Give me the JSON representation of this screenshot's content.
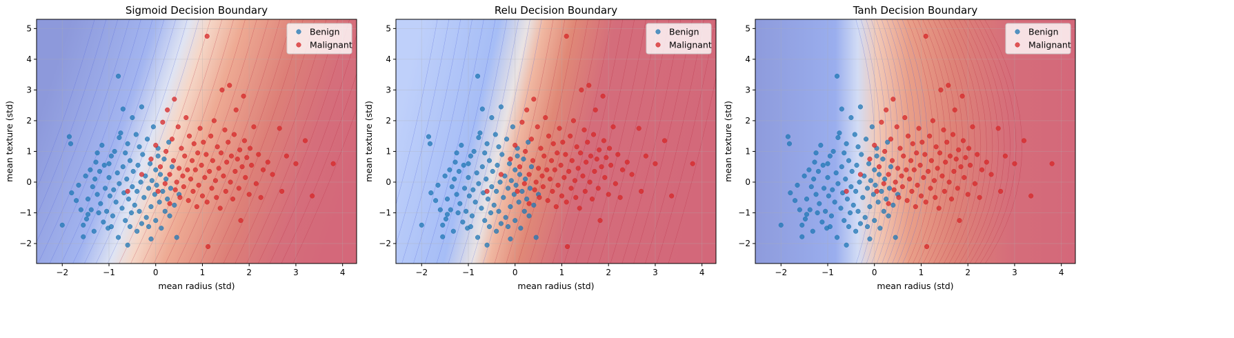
{
  "chart_data": [
    {
      "type": "scatter",
      "title": "Sigmoid Decision Boundary",
      "xlabel": "mean radius (std)",
      "ylabel": "mean texture (std)",
      "xlim": [
        -2.55,
        4.3
      ],
      "ylim": [
        -2.65,
        5.3
      ],
      "xticks": [
        -2,
        -1,
        0,
        1,
        2,
        3,
        4
      ],
      "yticks": [
        -2,
        -1,
        0,
        1,
        2,
        3,
        4,
        5
      ],
      "xtick_labels": [
        "−2",
        "−1",
        "0",
        "1",
        "2",
        "3",
        "4"
      ],
      "ytick_labels": [
        "−2",
        "−1",
        "0",
        "1",
        "2",
        "3",
        "4",
        "5"
      ],
      "grid": true,
      "legend_position": "top-right",
      "background": "decision-boundary-contour",
      "activation": "sigmoid",
      "series": [
        {
          "name": "Benign",
          "color": "#1f77b4"
        },
        {
          "name": "Malignant",
          "color": "#d62728"
        }
      ]
    },
    {
      "type": "scatter",
      "title": "Relu Decision Boundary",
      "xlabel": "mean radius (std)",
      "ylabel": "mean texture (std)",
      "xlim": [
        -2.55,
        4.3
      ],
      "ylim": [
        -2.65,
        5.3
      ],
      "xticks": [
        -2,
        -1,
        0,
        1,
        2,
        3,
        4
      ],
      "yticks": [
        -2,
        -1,
        0,
        1,
        2,
        3,
        4,
        5
      ],
      "xtick_labels": [
        "−2",
        "−1",
        "0",
        "1",
        "2",
        "3",
        "4"
      ],
      "ytick_labels": [
        "−2",
        "−1",
        "0",
        "1",
        "2",
        "3",
        "4",
        "5"
      ],
      "grid": true,
      "legend_position": "top-right",
      "background": "decision-boundary-contour",
      "activation": "relu",
      "series": [
        {
          "name": "Benign",
          "color": "#1f77b4"
        },
        {
          "name": "Malignant",
          "color": "#d62728"
        }
      ]
    },
    {
      "type": "scatter",
      "title": "Tanh Decision Boundary",
      "xlabel": "mean radius (std)",
      "ylabel": "mean texture (std)",
      "xlim": [
        -2.55,
        4.3
      ],
      "ylim": [
        -2.65,
        5.3
      ],
      "xticks": [
        -2,
        -1,
        0,
        1,
        2,
        3,
        4
      ],
      "yticks": [
        -2,
        -1,
        0,
        1,
        2,
        3,
        4,
        5
      ],
      "xtick_labels": [
        "−2",
        "−1",
        "0",
        "1",
        "2",
        "3",
        "4"
      ],
      "ytick_labels": [
        "−2",
        "−1",
        "0",
        "1",
        "2",
        "3",
        "4",
        "5"
      ],
      "grid": true,
      "legend_position": "top-right",
      "background": "decision-boundary-contour",
      "activation": "tanh",
      "series": [
        {
          "name": "Benign",
          "color": "#1f77b4"
        },
        {
          "name": "Malignant",
          "color": "#d62728"
        }
      ]
    }
  ],
  "points": {
    "benign": [
      [
        -2.0,
        -1.4
      ],
      [
        -1.85,
        1.48
      ],
      [
        -1.82,
        1.25
      ],
      [
        -1.8,
        -0.35
      ],
      [
        -1.7,
        -0.6
      ],
      [
        -1.65,
        -0.1
      ],
      [
        -1.6,
        -0.9
      ],
      [
        -1.55,
        -1.4
      ],
      [
        -1.55,
        -1.78
      ],
      [
        -1.5,
        0.2
      ],
      [
        -1.48,
        -1.2
      ],
      [
        -1.45,
        -0.55
      ],
      [
        -1.4,
        0.4
      ],
      [
        -1.38,
        -0.9
      ],
      [
        -1.35,
        -0.15
      ],
      [
        -1.32,
        -1.6
      ],
      [
        -1.3,
        0.1
      ],
      [
        -1.28,
        0.65
      ],
      [
        -1.25,
        -0.4
      ],
      [
        -1.22,
        -1.0
      ],
      [
        -1.2,
        0.35
      ],
      [
        -1.18,
        -0.7
      ],
      [
        -1.15,
        1.2
      ],
      [
        -1.12,
        -1.3
      ],
      [
        -1.1,
        0.55
      ],
      [
        -1.08,
        -0.2
      ],
      [
        -1.05,
        -0.95
      ],
      [
        -1.02,
        -1.5
      ],
      [
        -1.0,
        0.15
      ],
      [
        -0.98,
        -0.45
      ],
      [
        -0.95,
        0.85
      ],
      [
        -0.92,
        -1.1
      ],
      [
        -0.9,
        -0.25
      ],
      [
        -0.88,
        1.0
      ],
      [
        -0.85,
        -0.65
      ],
      [
        -0.82,
        0.3
      ],
      [
        -0.8,
        3.45
      ],
      [
        -0.8,
        -1.8
      ],
      [
        -0.78,
        -0.05
      ],
      [
        -0.75,
        1.6
      ],
      [
        -0.72,
        -0.85
      ],
      [
        -0.7,
        0.5
      ],
      [
        -0.7,
        2.38
      ],
      [
        -0.68,
        -0.35
      ],
      [
        -0.65,
        -1.25
      ],
      [
        -0.62,
        0.1
      ],
      [
        -0.6,
        1.25
      ],
      [
        -0.6,
        -2.05
      ],
      [
        -0.58,
        -0.55
      ],
      [
        -0.55,
        0.7
      ],
      [
        -0.52,
        -1.0
      ],
      [
        -0.5,
        -0.15
      ],
      [
        -0.5,
        2.1
      ],
      [
        -0.48,
        0.35
      ],
      [
        -0.45,
        -0.75
      ],
      [
        -0.42,
        1.55
      ],
      [
        -0.4,
        -0.3
      ],
      [
        -0.4,
        -1.6
      ],
      [
        -0.38,
        0.55
      ],
      [
        -0.35,
        -0.95
      ],
      [
        -0.32,
        0.0
      ],
      [
        -0.3,
        2.45
      ],
      [
        -0.3,
        -1.35
      ],
      [
        -0.28,
        0.9
      ],
      [
        -0.25,
        -0.5
      ],
      [
        -0.22,
        0.2
      ],
      [
        -0.2,
        -1.15
      ],
      [
        -0.18,
        1.4
      ],
      [
        -0.15,
        -0.2
      ],
      [
        -0.12,
        0.6
      ],
      [
        -0.1,
        -0.8
      ],
      [
        -0.1,
        -1.85
      ],
      [
        -0.08,
        0.05
      ],
      [
        -0.05,
        1.8
      ],
      [
        -0.02,
        -0.4
      ],
      [
        0.0,
        0.4
      ],
      [
        0.0,
        -1.25
      ],
      [
        0.02,
        -0.1
      ],
      [
        0.05,
        1.1
      ],
      [
        0.08,
        -0.65
      ],
      [
        0.1,
        0.25
      ],
      [
        0.12,
        -1.5
      ],
      [
        0.15,
        -0.3
      ],
      [
        0.18,
        0.75
      ],
      [
        0.2,
        -0.95
      ],
      [
        0.22,
        0.1
      ],
      [
        0.25,
        -0.55
      ],
      [
        0.28,
        1.3
      ],
      [
        0.3,
        -1.1
      ],
      [
        0.32,
        -0.2
      ],
      [
        0.35,
        0.5
      ],
      [
        0.4,
        -0.75
      ],
      [
        0.45,
        -1.8
      ],
      [
        0.5,
        -0.4
      ],
      [
        -1.25,
        0.95
      ],
      [
        -1.45,
        -1.05
      ],
      [
        -0.95,
        -1.45
      ],
      [
        -0.65,
        0.95
      ],
      [
        -0.35,
        1.15
      ],
      [
        -0.15,
        -1.45
      ],
      [
        0.05,
        0.85
      ],
      [
        -0.55,
        -1.45
      ],
      [
        -1.0,
        0.6
      ],
      [
        -0.78,
        1.45
      ]
    ],
    "malignant": [
      [
        -0.6,
        -0.3
      ],
      [
        -0.3,
        0.25
      ],
      [
        -0.1,
        0.75
      ],
      [
        0.0,
        1.2
      ],
      [
        0.05,
        -0.3
      ],
      [
        0.1,
        0.5
      ],
      [
        0.15,
        1.95
      ],
      [
        0.2,
        -0.05
      ],
      [
        0.22,
        1.0
      ],
      [
        0.25,
        2.35
      ],
      [
        0.3,
        0.25
      ],
      [
        0.3,
        -0.7
      ],
      [
        0.35,
        1.4
      ],
      [
        0.38,
        0.7
      ],
      [
        0.4,
        2.7
      ],
      [
        0.42,
        -0.25
      ],
      [
        0.45,
        0.0
      ],
      [
        0.48,
        1.8
      ],
      [
        0.5,
        0.45
      ],
      [
        0.52,
        -0.5
      ],
      [
        0.55,
        1.1
      ],
      [
        0.58,
        0.2
      ],
      [
        0.6,
        -0.15
      ],
      [
        0.62,
        0.85
      ],
      [
        0.65,
        2.1
      ],
      [
        0.68,
        0.4
      ],
      [
        0.7,
        -0.6
      ],
      [
        0.72,
        1.5
      ],
      [
        0.75,
        0.1
      ],
      [
        0.78,
        0.7
      ],
      [
        0.8,
        -0.3
      ],
      [
        0.82,
        1.25
      ],
      [
        0.85,
        0.4
      ],
      [
        0.88,
        -0.8
      ],
      [
        0.9,
        0.95
      ],
      [
        0.92,
        -0.1
      ],
      [
        0.95,
        1.75
      ],
      [
        0.98,
        0.55
      ],
      [
        1.0,
        -0.45
      ],
      [
        1.02,
        1.3
      ],
      [
        1.05,
        0.15
      ],
      [
        1.08,
        0.9
      ],
      [
        1.1,
        -0.65
      ],
      [
        1.1,
        4.75
      ],
      [
        1.12,
        -2.1
      ],
      [
        1.15,
        0.35
      ],
      [
        1.18,
        1.5
      ],
      [
        1.2,
        -0.2
      ],
      [
        1.22,
        0.7
      ],
      [
        1.25,
        2.0
      ],
      [
        1.28,
        0.05
      ],
      [
        1.3,
        -0.5
      ],
      [
        1.32,
        1.15
      ],
      [
        1.35,
        0.45
      ],
      [
        1.38,
        -0.85
      ],
      [
        1.4,
        0.95
      ],
      [
        1.42,
        3.0
      ],
      [
        1.45,
        0.2
      ],
      [
        1.48,
        1.7
      ],
      [
        1.5,
        -0.3
      ],
      [
        1.52,
        0.65
      ],
      [
        1.55,
        1.3
      ],
      [
        1.58,
        3.15
      ],
      [
        1.6,
        0.0
      ],
      [
        1.62,
        0.85
      ],
      [
        1.65,
        -0.55
      ],
      [
        1.68,
        1.55
      ],
      [
        1.7,
        0.35
      ],
      [
        1.72,
        2.35
      ],
      [
        1.75,
        0.75
      ],
      [
        1.78,
        -0.2
      ],
      [
        1.8,
        1.05
      ],
      [
        1.82,
        -1.25
      ],
      [
        1.85,
        0.5
      ],
      [
        1.88,
        2.8
      ],
      [
        1.9,
        1.35
      ],
      [
        1.92,
        0.15
      ],
      [
        1.95,
        0.8
      ],
      [
        2.0,
        -0.4
      ],
      [
        2.02,
        1.1
      ],
      [
        2.05,
        0.55
      ],
      [
        2.1,
        1.8
      ],
      [
        2.15,
        -0.05
      ],
      [
        2.2,
        0.9
      ],
      [
        2.25,
        -0.5
      ],
      [
        2.3,
        0.4
      ],
      [
        2.4,
        0.65
      ],
      [
        2.5,
        0.25
      ],
      [
        2.65,
        1.75
      ],
      [
        2.7,
        -0.3
      ],
      [
        2.8,
        0.85
      ],
      [
        3.0,
        0.6
      ],
      [
        3.2,
        1.35
      ],
      [
        3.35,
        -0.45
      ],
      [
        3.8,
        0.6
      ]
    ]
  }
}
